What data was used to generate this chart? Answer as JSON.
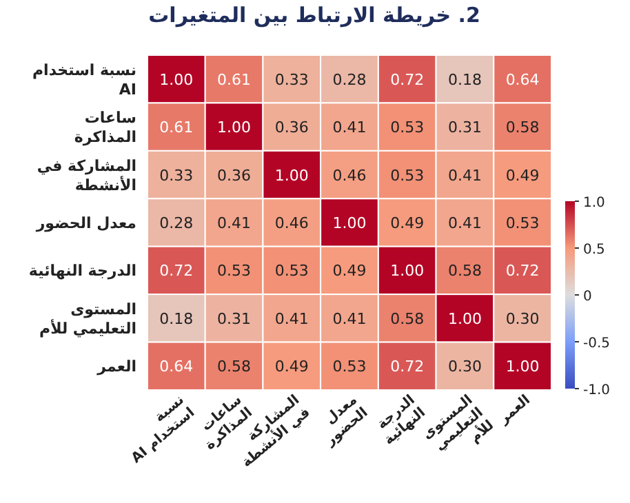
{
  "chart_data": {
    "type": "heatmap",
    "title": "2. خريطة الارتباط بين المتغيرات",
    "categories": [
      "نسبة استخدام AI",
      "ساعات المذاكرة",
      "المشاركة في الأنشطة",
      "معدل الحضور",
      "الدرجة النهائية",
      "المستوى التعليمي للأم",
      "العمر"
    ],
    "y_categories": [
      "نسبة استخدام AI",
      "ساعات المذاكرة",
      "المشاركة في الأنشطة",
      "معدل الحضور",
      "الدرجة النهائية",
      "المستوى التعليمي للأم",
      "العمر"
    ],
    "cells": [
      [
        1.0,
        0.61,
        0.33,
        0.28,
        0.72,
        0.18,
        0.64
      ],
      [
        0.61,
        1.0,
        0.36,
        0.41,
        0.53,
        0.31,
        0.58
      ],
      [
        0.33,
        0.36,
        1.0,
        0.46,
        0.53,
        0.41,
        0.49
      ],
      [
        0.28,
        0.41,
        0.46,
        1.0,
        0.49,
        0.41,
        0.53
      ],
      [
        0.72,
        0.53,
        0.53,
        0.49,
        1.0,
        0.58,
        0.72
      ],
      [
        0.18,
        0.31,
        0.41,
        0.41,
        0.58,
        1.0,
        0.3
      ],
      [
        0.64,
        0.58,
        0.49,
        0.53,
        0.72,
        0.3,
        1.0
      ]
    ],
    "cell_labels": [
      [
        "1.00",
        "0.61",
        "0.33",
        "0.28",
        "0.72",
        "0.18",
        "0.64"
      ],
      [
        "0.61",
        "1.00",
        "0.36",
        "0.41",
        "0.53",
        "0.31",
        "0.58"
      ],
      [
        "0.33",
        "0.36",
        "1.00",
        "0.46",
        "0.53",
        "0.41",
        "0.49"
      ],
      [
        "0.28",
        "0.41",
        "0.46",
        "1.00",
        "0.49",
        "0.41",
        "0.53"
      ],
      [
        "0.72",
        "0.53",
        "0.53",
        "0.49",
        "1.00",
        "0.58",
        "0.72"
      ],
      [
        "0.18",
        "0.31",
        "0.41",
        "0.41",
        "0.58",
        "1.00",
        "0.30"
      ],
      [
        "0.64",
        "0.58",
        "0.49",
        "0.53",
        "0.72",
        "0.30",
        "1.00"
      ]
    ],
    "clim": [
      -1.0,
      1.0
    ],
    "cticks": [
      {
        "value": 1.0,
        "label": "1.0"
      },
      {
        "value": 0.5,
        "label": "0.5"
      },
      0,
      {
        "value": -0.5,
        "label": "-0.5"
      },
      {
        "value": -1.0,
        "label": "-1.0"
      }
    ]
  }
}
